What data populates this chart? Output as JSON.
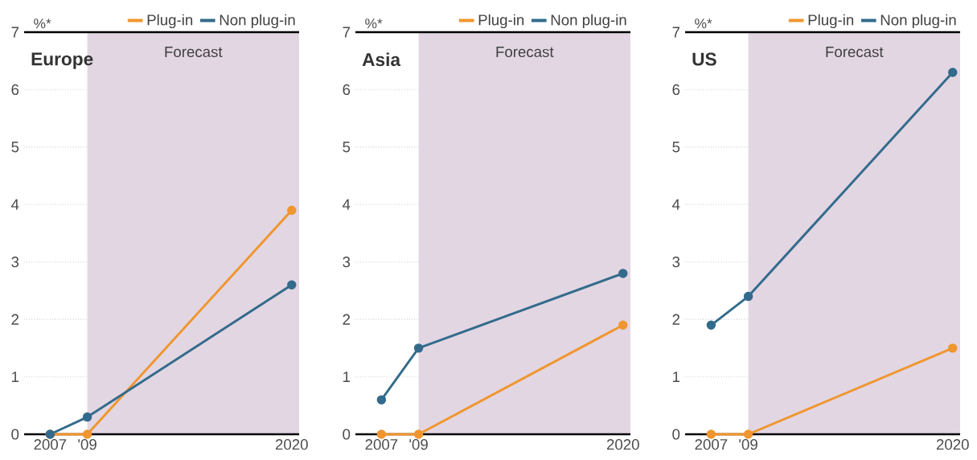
{
  "chart_data": [
    {
      "type": "line",
      "title": "Europe",
      "ylabel": "%*",
      "x": [
        2007,
        2009,
        2020
      ],
      "xlim": [
        2005.6,
        2020.4
      ],
      "xticks": [
        {
          "value": 2007,
          "label": "2007"
        },
        {
          "value": 2009,
          "label": "'09"
        },
        {
          "value": 2020,
          "label": "2020"
        }
      ],
      "ylim": [
        0,
        7
      ],
      "yticks": [
        0,
        1,
        2,
        3,
        4,
        5,
        6,
        7
      ],
      "grid": "y",
      "legend": "top right",
      "marker": "circle",
      "bands": [
        {
          "axis": "x",
          "from": 2009,
          "to": 2020.4,
          "label": "Forecast",
          "color": "#e2d6e2"
        }
      ],
      "series": [
        {
          "name": "Plug-in",
          "color": "#f0962e",
          "values": [
            0,
            0,
            3.9
          ]
        },
        {
          "name": "Non plug-in",
          "color": "#336b8c",
          "values": [
            0,
            0.3,
            2.6
          ]
        }
      ]
    },
    {
      "type": "line",
      "title": "Asia",
      "ylabel": "%*",
      "x": [
        2007,
        2009,
        2020
      ],
      "xlim": [
        2005.6,
        2020.4
      ],
      "xticks": [
        {
          "value": 2007,
          "label": "2007"
        },
        {
          "value": 2009,
          "label": "'09"
        },
        {
          "value": 2020,
          "label": "2020"
        }
      ],
      "ylim": [
        0,
        7
      ],
      "yticks": [
        0,
        1,
        2,
        3,
        4,
        5,
        6,
        7
      ],
      "grid": "y",
      "legend": "top right",
      "marker": "circle",
      "bands": [
        {
          "axis": "x",
          "from": 2009,
          "to": 2020.4,
          "label": "Forecast",
          "color": "#e2d6e2"
        }
      ],
      "series": [
        {
          "name": "Plug-in",
          "color": "#f0962e",
          "values": [
            0,
            0,
            1.9
          ]
        },
        {
          "name": "Non plug-in",
          "color": "#336b8c",
          "values": [
            0.6,
            1.5,
            2.8
          ]
        }
      ]
    },
    {
      "type": "line",
      "title": "US",
      "ylabel": "%*",
      "x": [
        2007,
        2009,
        2020
      ],
      "xlim": [
        2005.6,
        2020.4
      ],
      "xticks": [
        {
          "value": 2007,
          "label": "2007"
        },
        {
          "value": 2009,
          "label": "'09"
        },
        {
          "value": 2020,
          "label": "2020"
        }
      ],
      "ylim": [
        0,
        7
      ],
      "yticks": [
        0,
        1,
        2,
        3,
        4,
        5,
        6,
        7
      ],
      "grid": "y",
      "legend": "top right",
      "marker": "circle",
      "bands": [
        {
          "axis": "x",
          "from": 2009,
          "to": 2020.4,
          "label": "Forecast",
          "color": "#e2d6e2"
        }
      ],
      "series": [
        {
          "name": "Plug-in",
          "color": "#f0962e",
          "values": [
            0,
            0,
            1.5
          ]
        },
        {
          "name": "Non plug-in",
          "color": "#336b8c",
          "values": [
            1.9,
            2.4,
            6.3
          ]
        }
      ]
    }
  ]
}
